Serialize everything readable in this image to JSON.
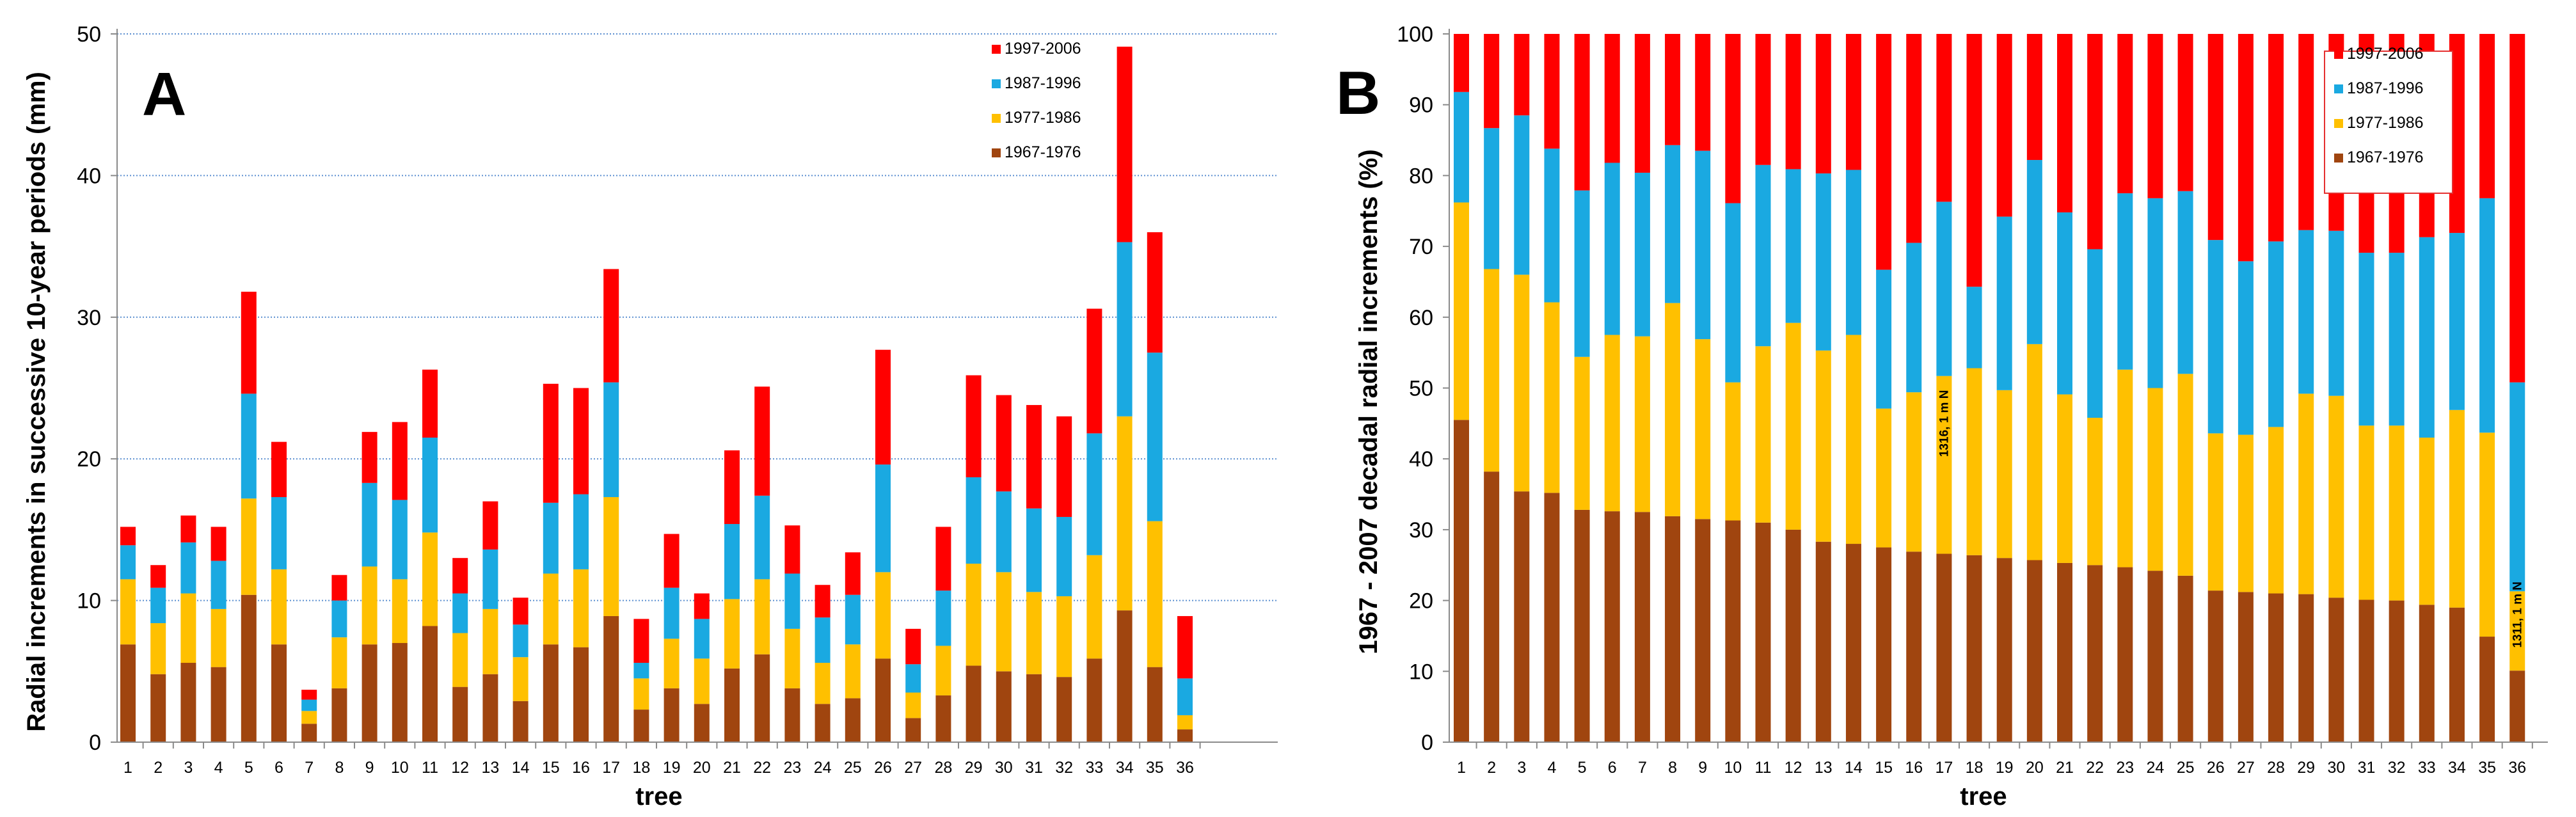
{
  "chart_data": [
    {
      "panel": "A",
      "type": "bar",
      "stacked": true,
      "title": "",
      "xlabel": "tree",
      "ylabel": "Radial increments in successive 10-year periods (mm)",
      "ylim": [
        0,
        50
      ],
      "yticks": [
        0,
        10,
        20,
        30,
        40,
        50
      ],
      "grid": "horizontal dotted",
      "legend_position": "top-right",
      "categories": [
        "1",
        "2",
        "3",
        "4",
        "5",
        "6",
        "7",
        "8",
        "9",
        "10",
        "11",
        "12",
        "13",
        "14",
        "15",
        "16",
        "17",
        "18",
        "19",
        "20",
        "21",
        "22",
        "23",
        "24",
        "25",
        "26",
        "27",
        "28",
        "29",
        "30",
        "31",
        "32",
        "33",
        "34",
        "35",
        "36"
      ],
      "series": [
        {
          "name": "1967-1976",
          "color": "#a0450f",
          "values": [
            6.9,
            4.8,
            5.6,
            5.3,
            10.4,
            6.9,
            1.3,
            3.8,
            6.9,
            7.0,
            8.2,
            3.9,
            4.8,
            2.9,
            6.9,
            6.7,
            8.9,
            2.3,
            3.8,
            2.7,
            5.2,
            6.2,
            3.8,
            2.7,
            3.1,
            5.9,
            1.7,
            3.3,
            5.4,
            5.0,
            4.8,
            4.6,
            5.9,
            9.3,
            5.3,
            0.9
          ]
        },
        {
          "name": "1977-1986",
          "color": "#ffc000",
          "values": [
            4.6,
            3.6,
            4.9,
            4.1,
            6.8,
            5.3,
            0.9,
            3.6,
            5.5,
            4.5,
            6.6,
            3.8,
            4.6,
            3.1,
            5.0,
            5.5,
            8.4,
            2.2,
            3.5,
            3.2,
            4.9,
            5.3,
            4.2,
            2.9,
            3.8,
            6.1,
            1.8,
            3.5,
            7.2,
            7.0,
            5.8,
            5.7,
            7.3,
            13.7,
            10.3,
            1.0
          ]
        },
        {
          "name": "1987-1996",
          "color": "#1aa9e1",
          "values": [
            2.4,
            2.5,
            3.6,
            3.4,
            7.4,
            5.1,
            0.8,
            2.6,
            5.9,
            5.6,
            6.7,
            2.8,
            4.2,
            2.3,
            5.0,
            5.3,
            8.1,
            1.1,
            3.6,
            2.8,
            5.3,
            5.9,
            3.9,
            3.2,
            3.5,
            7.6,
            2.0,
            3.9,
            6.1,
            5.7,
            5.9,
            5.6,
            8.6,
            12.3,
            11.9,
            2.6
          ]
        },
        {
          "name": "1997-2006",
          "color": "#ff0000",
          "values": [
            1.3,
            1.6,
            1.9,
            2.4,
            7.2,
            3.9,
            0.7,
            1.8,
            3.6,
            5.5,
            4.8,
            2.5,
            3.4,
            1.9,
            8.4,
            7.5,
            8.0,
            3.1,
            3.8,
            1.8,
            5.2,
            7.7,
            3.4,
            2.3,
            3.0,
            8.1,
            2.5,
            4.5,
            7.2,
            6.8,
            7.3,
            7.1,
            8.8,
            13.8,
            8.5,
            4.4
          ]
        }
      ],
      "legend_order": [
        "1997-2006",
        "1987-1996",
        "1977-1986",
        "1967-1976"
      ]
    },
    {
      "panel": "B",
      "type": "bar",
      "stacked": true,
      "title": "",
      "xlabel": "tree",
      "ylabel": "1967 - 2007 decadal radial increments (%)",
      "ylim": [
        0,
        100
      ],
      "yticks": [
        0,
        10,
        20,
        30,
        40,
        50,
        60,
        70,
        80,
        90,
        100
      ],
      "grid": "none",
      "legend_position": "top-right",
      "categories": [
        "1",
        "2",
        "3",
        "4",
        "5",
        "6",
        "7",
        "8",
        "9",
        "10",
        "11",
        "12",
        "13",
        "14",
        "15",
        "16",
        "17",
        "18",
        "19",
        "20",
        "21",
        "22",
        "23",
        "24",
        "25",
        "26",
        "27",
        "28",
        "29",
        "30",
        "31",
        "32",
        "33",
        "34",
        "35",
        "36"
      ],
      "series": [
        {
          "name": "1967-1976",
          "color": "#a0450f",
          "values": [
            45.5,
            38.2,
            35.4,
            35.2,
            32.8,
            32.6,
            32.5,
            31.9,
            31.5,
            31.3,
            31.0,
            30.0,
            28.3,
            28.0,
            27.5,
            26.9,
            26.6,
            26.4,
            26.0,
            25.7,
            25.3,
            25.0,
            24.7,
            24.2,
            23.5,
            21.4,
            21.2,
            21.0,
            20.9,
            20.4,
            20.1,
            20.0,
            19.4,
            19.0,
            14.9,
            10.1
          ]
        },
        {
          "name": "1977-1986",
          "color": "#ffc000",
          "values": [
            30.7,
            28.6,
            30.6,
            26.9,
            21.6,
            24.9,
            24.8,
            30.1,
            25.4,
            19.5,
            24.9,
            29.2,
            27.0,
            29.5,
            19.6,
            22.5,
            25.1,
            26.4,
            23.7,
            30.5,
            23.8,
            20.8,
            27.9,
            25.8,
            28.5,
            22.2,
            22.2,
            23.5,
            28.3,
            28.5,
            24.6,
            24.7,
            23.6,
            27.9,
            28.8,
            11.2
          ]
        },
        {
          "name": "1987-1996",
          "color": "#1aa9e1",
          "values": [
            15.6,
            19.9,
            22.5,
            21.7,
            23.5,
            24.3,
            23.1,
            22.3,
            26.6,
            25.3,
            25.6,
            21.7,
            25.0,
            23.3,
            19.6,
            21.1,
            24.6,
            11.5,
            24.5,
            26.0,
            25.7,
            23.8,
            24.9,
            26.8,
            25.8,
            27.3,
            24.5,
            26.2,
            23.1,
            23.3,
            24.4,
            24.4,
            28.3,
            25.0,
            33.1,
            29.5
          ]
        },
        {
          "name": "1997-2006",
          "color": "#ff0000",
          "values": [
            8.2,
            13.3,
            11.5,
            16.2,
            22.1,
            18.2,
            19.6,
            15.7,
            16.5,
            23.9,
            18.5,
            19.1,
            19.7,
            19.2,
            33.3,
            29.5,
            23.7,
            35.7,
            25.8,
            17.8,
            25.2,
            30.4,
            22.5,
            23.2,
            22.2,
            29.1,
            32.1,
            29.3,
            27.7,
            27.8,
            30.9,
            30.9,
            28.7,
            28.1,
            23.2,
            49.2
          ]
        }
      ],
      "legend_order": [
        "1997-2006",
        "1987-1996",
        "1977-1986",
        "1967-1976"
      ],
      "annotations": [
        {
          "text": "1316, 1 m N",
          "category": "17",
          "rotation": "vertical"
        },
        {
          "text": "1311, 1 m N",
          "category": "36",
          "rotation": "vertical"
        }
      ]
    }
  ]
}
